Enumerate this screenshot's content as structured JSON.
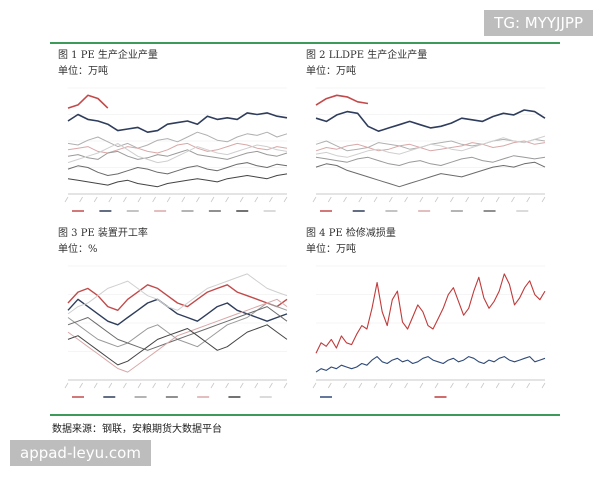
{
  "panels": [
    {
      "title": "图 1 PE 生产企业产量",
      "unit": "单位：万吨"
    },
    {
      "title": "图 2 LLDPE 生产企业产量",
      "unit": "单位：万吨"
    },
    {
      "title": "图 3 PE 装置开工率",
      "unit": "单位：%"
    },
    {
      "title": "图 4 PE 检修减损量",
      "unit": "单位：万吨"
    }
  ],
  "source": "数据来源：钢联，安粮期货大数据平台",
  "watermark_top": "TG: MYYJJPP",
  "watermark_bottom": "appad-leyu.com",
  "colors": {
    "accent_rule": "#3c9a5a",
    "series_dark": "#2f3d5c",
    "series_red": "#c03a3a"
  },
  "chart_data": [
    {
      "type": "line",
      "series": [
        {
          "values": [
            70,
            72,
            78,
            76,
            70
          ]
        },
        {
          "values": [
            62,
            66,
            63,
            62,
            60,
            56,
            57,
            58,
            55,
            56,
            60,
            61,
            62,
            60,
            65,
            63,
            64,
            63,
            67,
            66,
            67,
            65,
            64
          ]
        },
        {
          "values": [
            48,
            47,
            50,
            52,
            49,
            46,
            48,
            45,
            47,
            50,
            51,
            49,
            52,
            55,
            53,
            50,
            49,
            52,
            54,
            53,
            55,
            52,
            54
          ]
        },
        {
          "values": [
            44,
            45,
            46,
            43,
            42,
            44,
            46,
            45,
            43,
            42,
            44,
            47,
            48,
            45,
            43,
            44,
            46,
            48,
            47,
            45,
            44,
            46,
            45
          ]
        },
        {
          "values": [
            40,
            41,
            39,
            38,
            42,
            43,
            40,
            38,
            39,
            41,
            40,
            42,
            44,
            41,
            40,
            39,
            38,
            40,
            42,
            43,
            41,
            40,
            42
          ]
        },
        {
          "values": [
            32,
            34,
            33,
            30,
            28,
            29,
            31,
            33,
            32,
            30,
            29,
            31,
            33,
            34,
            32,
            31,
            33,
            35,
            36,
            34,
            33,
            35,
            34
          ]
        },
        {
          "values": [
            26,
            25,
            24,
            23,
            22,
            24,
            25,
            23,
            22,
            21,
            23,
            24,
            25,
            26,
            25,
            24,
            26,
            27,
            28,
            27,
            26,
            28,
            29
          ]
        },
        {
          "values": [
            36,
            38,
            40,
            42,
            45,
            48,
            44,
            40,
            38,
            36,
            37,
            40,
            43,
            46,
            44,
            42,
            41,
            43,
            45,
            47,
            46,
            44,
            43
          ]
        }
      ]
    },
    {
      "type": "line",
      "series": [
        {
          "values": [
            68,
            72,
            74,
            73,
            70,
            69
          ]
        },
        {
          "values": [
            60,
            58,
            62,
            64,
            63,
            55,
            52,
            54,
            56,
            58,
            56,
            54,
            55,
            57,
            60,
            59,
            58,
            61,
            63,
            62,
            65,
            64,
            60
          ]
        },
        {
          "values": [
            44,
            46,
            43,
            40,
            41,
            42,
            45,
            44,
            43,
            41,
            42,
            44,
            45,
            46,
            44,
            43,
            44,
            46,
            47,
            46,
            45,
            47,
            46
          ]
        },
        {
          "values": [
            40,
            42,
            41,
            43,
            44,
            42,
            40,
            41,
            43,
            44,
            42,
            40,
            41,
            42,
            43,
            45,
            44,
            42,
            43,
            45,
            46,
            44,
            45
          ]
        },
        {
          "values": [
            36,
            35,
            34,
            33,
            35,
            36,
            34,
            32,
            31,
            33,
            34,
            32,
            31,
            33,
            35,
            36,
            34,
            33,
            35,
            37,
            36,
            35,
            36
          ]
        },
        {
          "values": [
            30,
            32,
            31,
            28,
            26,
            24,
            22,
            20,
            18,
            20,
            22,
            24,
            26,
            25,
            24,
            26,
            28,
            30,
            31,
            30,
            32,
            33,
            30
          ]
        },
        {
          "values": [
            38,
            39,
            37,
            36,
            38,
            40,
            41,
            39,
            38,
            40,
            42,
            44,
            43,
            41,
            40,
            42,
            44,
            46,
            48,
            46,
            45,
            47,
            49
          ]
        }
      ]
    },
    {
      "type": "line",
      "series": [
        {
          "values": [
            82,
            88,
            90,
            86,
            80,
            78,
            84,
            88,
            92,
            90,
            86,
            82,
            80,
            84,
            88,
            90,
            92,
            88,
            86,
            84,
            82,
            80,
            84
          ]
        },
        {
          "values": [
            78,
            84,
            80,
            76,
            72,
            70,
            74,
            78,
            82,
            84,
            80,
            76,
            74,
            72,
            76,
            80,
            82,
            78,
            76,
            74,
            72,
            74,
            76
          ]
        },
        {
          "values": [
            74,
            70,
            66,
            62,
            60,
            58,
            60,
            64,
            68,
            70,
            66,
            62,
            60,
            58,
            62,
            66,
            70,
            72,
            74,
            78,
            82,
            80,
            78
          ]
        },
        {
          "values": [
            70,
            72,
            74,
            70,
            66,
            62,
            60,
            58,
            56,
            58,
            60,
            62,
            64,
            66,
            68,
            70,
            72,
            74,
            76,
            78,
            80,
            76,
            72
          ]
        },
        {
          "values": [
            66,
            62,
            58,
            54,
            50,
            46,
            44,
            48,
            52,
            56,
            60,
            64,
            66,
            68,
            70,
            72,
            74,
            76,
            78,
            80,
            82,
            84,
            80
          ]
        },
        {
          "values": [
            62,
            64,
            60,
            56,
            52,
            48,
            50,
            54,
            58,
            62,
            64,
            66,
            68,
            64,
            60,
            56,
            58,
            62,
            66,
            68,
            70,
            66,
            62
          ]
        },
        {
          "values": [
            76,
            80,
            82,
            86,
            90,
            92,
            94,
            90,
            86,
            84,
            80,
            78,
            82,
            86,
            90,
            92,
            94,
            96,
            98,
            94,
            90,
            88,
            86
          ]
        }
      ]
    },
    {
      "type": "line",
      "series": [
        {
          "values": [
            3,
            5,
            4,
            6,
            5,
            7,
            6,
            5,
            6,
            8,
            7,
            10,
            12,
            9,
            8,
            10,
            11,
            9,
            10,
            8,
            9,
            11,
            12,
            10,
            9,
            8,
            10,
            11,
            9,
            10,
            12,
            11,
            9,
            8,
            10,
            9,
            11,
            12,
            10,
            9,
            10,
            11,
            12,
            9,
            10,
            11
          ]
        },
        {
          "values": [
            14,
            20,
            18,
            22,
            17,
            24,
            20,
            19,
            25,
            30,
            28,
            40,
            55,
            38,
            30,
            45,
            50,
            32,
            28,
            35,
            42,
            38,
            30,
            28,
            34,
            40,
            48,
            52,
            44,
            36,
            40,
            50,
            58,
            46,
            40,
            44,
            50,
            60,
            54,
            42,
            46,
            52,
            56,
            48,
            45,
            50
          ]
        }
      ]
    }
  ]
}
